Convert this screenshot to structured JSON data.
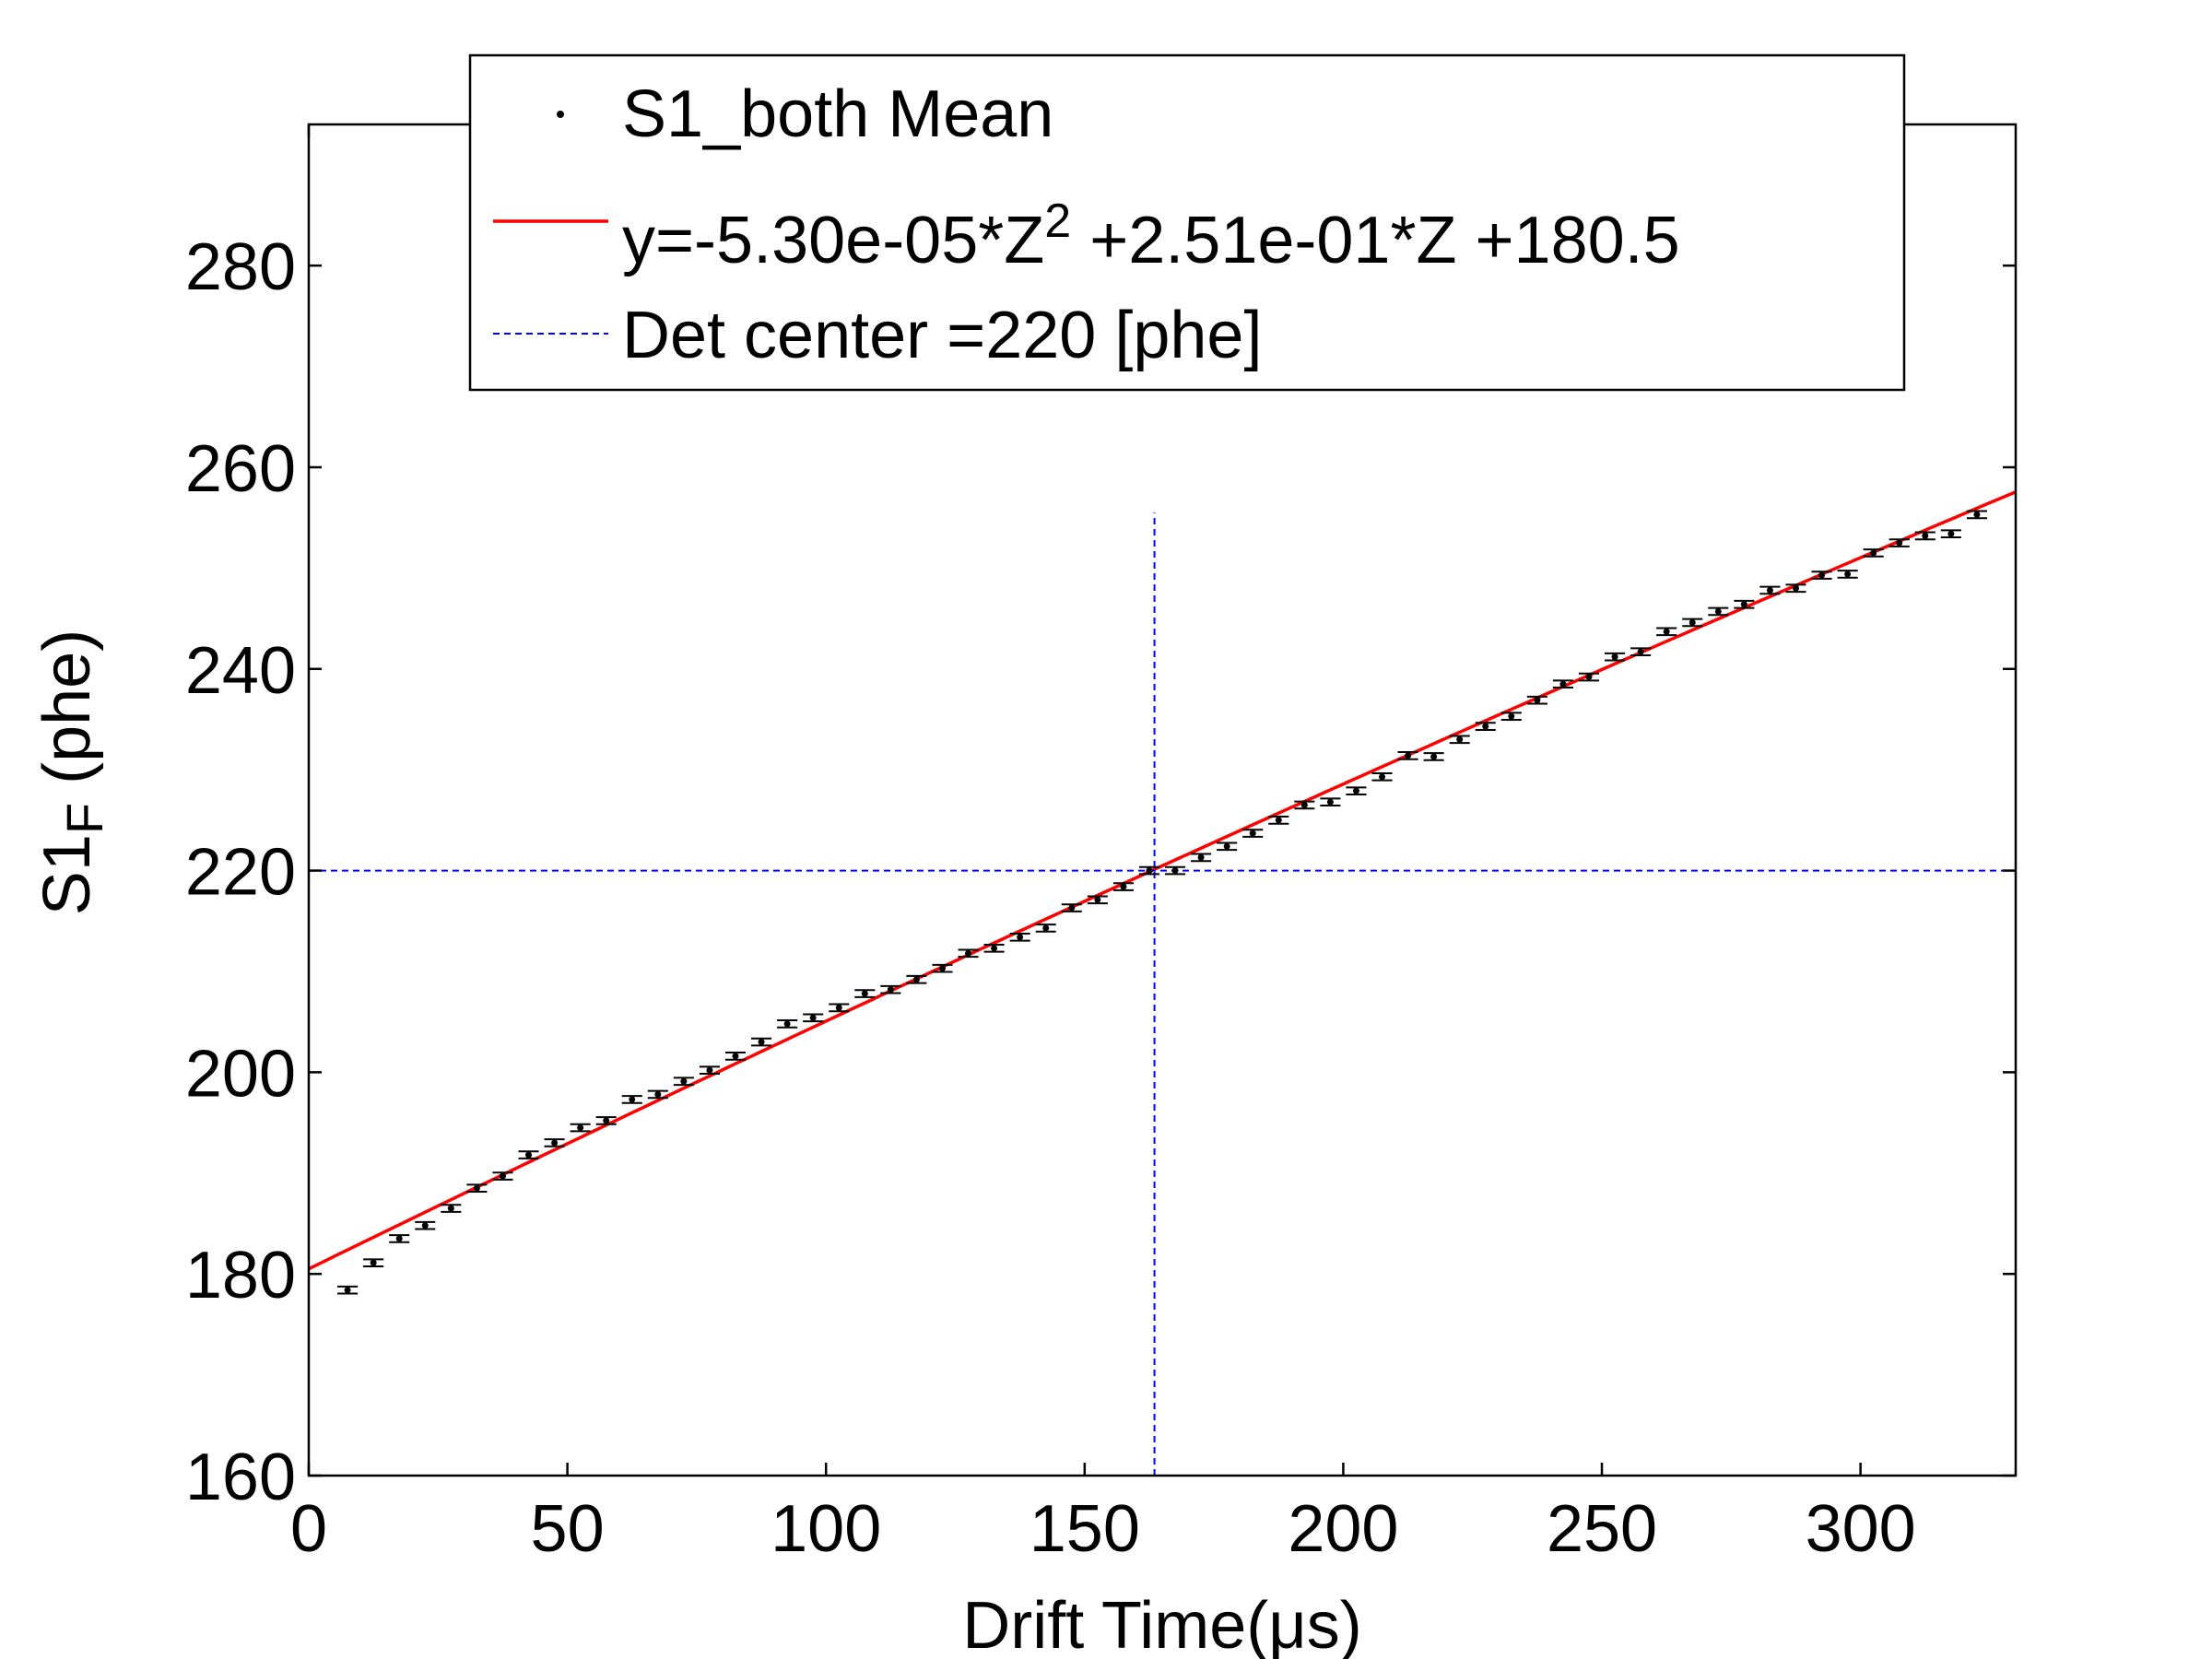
{
  "chart_data": {
    "type": "scatter",
    "xlabel": "Drift Time(μs)",
    "ylabel_main": "S1",
    "ylabel_sub": "F",
    "ylabel_unit": " (phe)",
    "xlim": [
      0,
      330
    ],
    "ylim": [
      160,
      294
    ],
    "xticks": [
      0,
      50,
      100,
      150,
      200,
      250,
      300
    ],
    "yticks": [
      160,
      180,
      200,
      220,
      240,
      260,
      280
    ],
    "grid": false,
    "legend_position": "top",
    "legend": {
      "mean_label": "S1_both Mean",
      "fit_label_prefix": "y=-5.30e-05*Z",
      "fit_label_sup": "2",
      "fit_label_suffix": " +2.51e-01*Z +180.5",
      "center_label": "Det center =220 [phe]"
    },
    "fit": {
      "a": -5.3e-05,
      "b": 0.251,
      "c": 180.5,
      "color": "#ff0000"
    },
    "det_center": {
      "x": 163.5,
      "y": 220,
      "y_top": 255.5,
      "color": "#0000ff"
    },
    "series": {
      "x": [
        7.5,
        12.5,
        17.5,
        22.5,
        27.5,
        32.5,
        37.5,
        42.5,
        47.5,
        52.5,
        57.5,
        62.5,
        67.5,
        72.5,
        77.5,
        82.5,
        87.5,
        92.5,
        97.5,
        102.5,
        107.5,
        112.5,
        117.5,
        122.5,
        127.5,
        132.5,
        137.5,
        142.5,
        147.5,
        152.5,
        157.5,
        162.5,
        167.5,
        172.5,
        177.5,
        182.5,
        187.5,
        192.5,
        197.5,
        202.5,
        207.5,
        212.5,
        217.5,
        222.5,
        227.5,
        232.5,
        237.5,
        242.5,
        247.5,
        252.5,
        257.5,
        262.5,
        267.5,
        272.5,
        277.5,
        282.5,
        287.5,
        292.5,
        297.5,
        302.5,
        307.5,
        312.5,
        317.5,
        322.5
      ],
      "y": [
        178.4,
        181.1,
        183.5,
        184.8,
        186.5,
        188.5,
        189.7,
        191.8,
        193.0,
        194.5,
        195.2,
        197.3,
        197.8,
        199.1,
        200.2,
        201.6,
        203.0,
        204.8,
        205.4,
        206.4,
        207.8,
        208.2,
        209.2,
        210.3,
        211.8,
        212.3,
        213.4,
        214.3,
        216.3,
        217.1,
        218.4,
        220.0,
        220.0,
        221.3,
        222.4,
        223.7,
        225.0,
        226.5,
        226.8,
        227.9,
        229.3,
        231.4,
        231.3,
        233.0,
        234.3,
        235.3,
        236.9,
        238.5,
        239.2,
        241.2,
        241.7,
        243.7,
        244.6,
        245.7,
        246.4,
        247.8,
        248.0,
        249.3,
        249.4,
        251.5,
        252.5,
        253.2,
        253.4,
        255.3
      ],
      "err": [
        0.35,
        0.35,
        0.35,
        0.35,
        0.35,
        0.35,
        0.35,
        0.35,
        0.35,
        0.35,
        0.35,
        0.35,
        0.35,
        0.35,
        0.35,
        0.35,
        0.35,
        0.35,
        0.35,
        0.35,
        0.35,
        0.35,
        0.35,
        0.35,
        0.35,
        0.35,
        0.35,
        0.35,
        0.35,
        0.35,
        0.35,
        0.35,
        0.35,
        0.35,
        0.35,
        0.35,
        0.35,
        0.35,
        0.35,
        0.35,
        0.35,
        0.35,
        0.35,
        0.35,
        0.35,
        0.35,
        0.35,
        0.35,
        0.35,
        0.35,
        0.35,
        0.35,
        0.35,
        0.35,
        0.35,
        0.35,
        0.35,
        0.35,
        0.35,
        0.35,
        0.35,
        0.35,
        0.35,
        0.35
      ]
    }
  }
}
